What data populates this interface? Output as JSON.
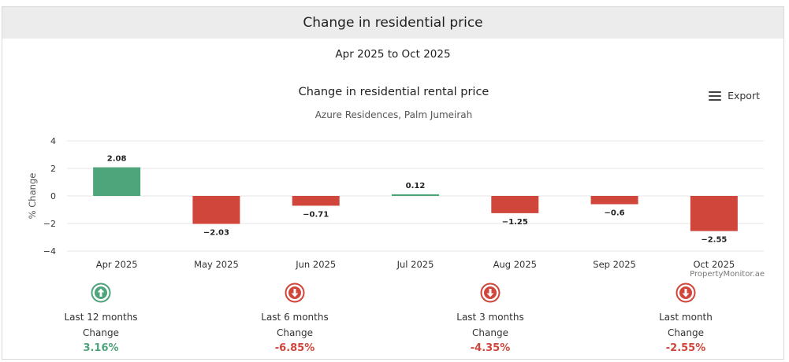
{
  "header": {
    "title": "Change in residential price"
  },
  "period": "Apr 2025 to Oct 2025",
  "export_label": "Export",
  "credit": "PropertyMonitor.ae",
  "colors": {
    "positive": "#4ea57b",
    "negative": "#d0463b",
    "grid": "#e6e6e6"
  },
  "chart_data": {
    "type": "bar",
    "title": "Change in residential rental price",
    "subtitle": "Azure Residences, Palm Jumeirah",
    "ylabel": "% Change",
    "xlabel": "",
    "ylim": [
      -4,
      4
    ],
    "yticks": [
      "4",
      "2",
      "0",
      "−2",
      "−4"
    ],
    "ytick_values": [
      4,
      2,
      0,
      -2,
      -4
    ],
    "categories": [
      "Apr 2025",
      "May 2025",
      "Jun 2025",
      "Jul 2025",
      "Aug 2025",
      "Sep 2025",
      "Oct 2025"
    ],
    "values": [
      2.08,
      -2.03,
      -0.71,
      0.12,
      -1.25,
      -0.6,
      -2.55
    ],
    "value_labels": [
      "2.08",
      "−2.03",
      "−0.71",
      "0.12",
      "−1.25",
      "−0.6",
      "−2.55"
    ]
  },
  "stats": [
    {
      "period": "Last 12 months",
      "label": "Change",
      "value": "3.16%",
      "direction": "up",
      "icon": "arrow-up-circle-icon"
    },
    {
      "period": "Last 6 months",
      "label": "Change",
      "value": "-6.85%",
      "direction": "down",
      "icon": "arrow-down-circle-icon"
    },
    {
      "period": "Last 3 months",
      "label": "Change",
      "value": "-4.35%",
      "direction": "down",
      "icon": "arrow-down-circle-icon"
    },
    {
      "period": "Last month",
      "label": "Change",
      "value": "-2.55%",
      "direction": "down",
      "icon": "arrow-down-circle-icon"
    }
  ]
}
